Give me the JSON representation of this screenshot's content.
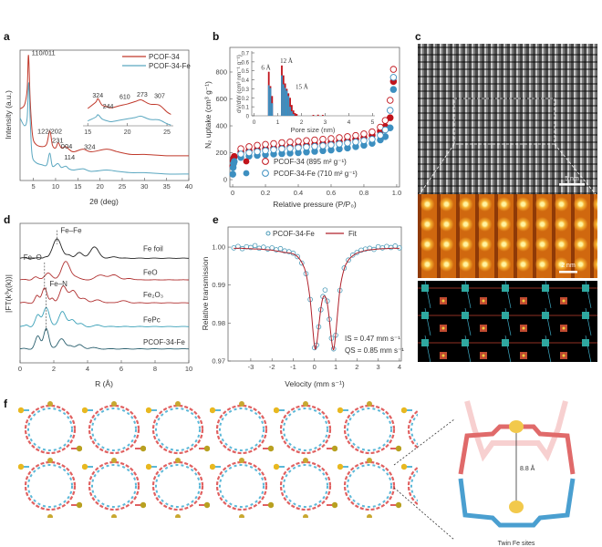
{
  "panel_labels": {
    "a": "a",
    "b": "b",
    "c": "c",
    "d": "d",
    "e": "e",
    "f": "f"
  },
  "chart_data": [
    {
      "panel": "a",
      "type": "line",
      "xlabel": "2θ (deg)",
      "ylabel": "Intensity (a.u.)",
      "xlim": [
        2,
        40
      ],
      "xticks": [
        "5",
        "10",
        "15",
        "20",
        "25",
        "30",
        "35",
        "40"
      ],
      "y_ticks_shown": false,
      "legend_position": "top-right",
      "series": [
        {
          "name": "PCOF-34",
          "color": "#c0392b",
          "x": [
            2,
            3,
            3.6,
            3.9,
            4.3,
            4.8,
            5.5,
            7,
            8,
            8.7,
            9.3,
            10,
            10.6,
            11.3,
            12.3,
            13,
            14,
            16.2,
            18,
            21.5,
            24,
            27,
            30,
            35,
            40
          ],
          "y": [
            55,
            58,
            70,
            96,
            60,
            35,
            28,
            26,
            28,
            38,
            27,
            25,
            29,
            25,
            26,
            24,
            22,
            24,
            22,
            24,
            22,
            20,
            20,
            19,
            19
          ]
        },
        {
          "name": "PCOF-34-Fe",
          "color": "#5aa7c0",
          "x": [
            2,
            3,
            3.6,
            3.95,
            4.3,
            4.7,
            5.5,
            7,
            8,
            8.7,
            9.3,
            10.5,
            11.3,
            12.3,
            13,
            14,
            16.2,
            18,
            21.5,
            24,
            27,
            30,
            35,
            40
          ],
          "y": [
            48,
            42,
            48,
            75,
            45,
            20,
            14,
            12,
            12,
            21,
            11,
            13,
            10,
            11,
            9,
            8,
            9,
            7,
            8,
            7,
            6,
            6,
            5,
            5
          ]
        }
      ],
      "annotations": [
        {
          "text": "110/011",
          "x": 4.6,
          "y": 96
        },
        {
          "text": "122/202",
          "x": 5.9,
          "y": 36
        },
        {
          "text": "231",
          "x": 9.2,
          "y": 29
        },
        {
          "text": "004",
          "x": 11.2,
          "y": 24.5
        },
        {
          "text": "324",
          "x": 16.4,
          "y": 24
        },
        {
          "text": "114",
          "x": 11.9,
          "y": 16
        }
      ],
      "inset": {
        "xlim": [
          14.4,
          25.8
        ],
        "xticks": [
          "15",
          "20",
          "25"
        ],
        "series": [
          {
            "name": "PCOF-34",
            "x": [
              15,
              16,
              16.3,
              16.8,
              17.5,
              18,
              19,
              20,
              21,
              21.7,
              22.5,
              23,
              24,
              25,
              25.5
            ],
            "y": [
              50,
              68,
              78,
              60,
              55,
              52,
              58,
              63,
              70,
              75,
              66,
              62,
              60,
              40,
              33
            ]
          },
          {
            "name": "PCOF-34-Fe",
            "x": [
              15,
              16,
              16.3,
              16.8,
              17.5,
              18,
              19,
              20,
              21,
              21.7,
              22.5,
              23,
              24,
              25,
              25.5
            ],
            "y": [
              14,
              25,
              32,
              20,
              14,
              12,
              16,
              20,
              24,
              28,
              21,
              18,
              17,
              6,
              2
            ]
          }
        ],
        "annotations": [
          {
            "text": "324",
            "x": 15.6,
            "y": 82
          },
          {
            "text": "610",
            "x": 19.0,
            "y": 78
          },
          {
            "text": "273",
            "x": 21.2,
            "y": 84
          },
          {
            "text": "307",
            "x": 23.4,
            "y": 80
          },
          {
            "text": "244",
            "x": 16.9,
            "y": 50
          }
        ]
      }
    },
    {
      "panel": "b",
      "type": "scatter",
      "xlabel": "Relative pressure (P/P₀)",
      "ylabel": "N₂ uptake (cm³ g⁻¹)",
      "xlim": [
        -0.017,
        1.017
      ],
      "ylim": [
        -54,
        983
      ],
      "xticks": [
        "0",
        "0.2",
        "0.4",
        "0.6",
        "0.8",
        "1.0"
      ],
      "yticks": [
        "0",
        "200",
        "400",
        "600",
        "800"
      ],
      "legend_position": "bottom-right",
      "legend": [
        "PCOF-34 (895 m² g⁻¹)",
        "PCOF-34-Fe (710 m² g⁻¹)"
      ],
      "series": [
        {
          "name": "PCOF-34 adsorption",
          "color": "#c0141c",
          "filled": true,
          "x": [
            0.001,
            0.003,
            0.006,
            0.01,
            0.05,
            0.1,
            0.15,
            0.2,
            0.25,
            0.3,
            0.35,
            0.4,
            0.45,
            0.5,
            0.55,
            0.6,
            0.65,
            0.7,
            0.75,
            0.8,
            0.85,
            0.9,
            0.93,
            0.96,
            0.98
          ],
          "y": [
            100,
            140,
            160,
            172,
            205,
            215,
            222,
            228,
            235,
            240,
            245,
            250,
            256,
            262,
            268,
            275,
            282,
            290,
            300,
            312,
            330,
            360,
            395,
            460,
            730
          ]
        },
        {
          "name": "PCOF-34 desorption",
          "color": "#c0141c",
          "filled": false,
          "x": [
            0.98,
            0.96,
            0.93,
            0.9,
            0.85,
            0.8,
            0.75,
            0.7,
            0.65,
            0.6,
            0.55,
            0.5,
            0.45,
            0.4,
            0.35,
            0.3,
            0.25,
            0.2,
            0.15,
            0.1,
            0.05
          ],
          "y": [
            820,
            590,
            440,
            390,
            355,
            340,
            328,
            320,
            312,
            305,
            300,
            295,
            290,
            285,
            280,
            275,
            268,
            262,
            255,
            245,
            230
          ]
        },
        {
          "name": "PCOF-34-Fe adsorption",
          "color": "#3d8fc0",
          "filled": true,
          "x": [
            0.001,
            0.003,
            0.006,
            0.01,
            0.05,
            0.1,
            0.15,
            0.2,
            0.25,
            0.3,
            0.35,
            0.4,
            0.45,
            0.5,
            0.55,
            0.6,
            0.65,
            0.7,
            0.75,
            0.8,
            0.85,
            0.9,
            0.93,
            0.96,
            0.98
          ],
          "y": [
            40,
            90,
            120,
            135,
            165,
            175,
            180,
            185,
            190,
            193,
            197,
            200,
            205,
            210,
            215,
            220,
            228,
            235,
            245,
            255,
            270,
            295,
            320,
            385,
            670
          ]
        },
        {
          "name": "PCOF-34-Fe desorption",
          "color": "#3d8fc0",
          "filled": false,
          "x": [
            0.98,
            0.96,
            0.93,
            0.9,
            0.85,
            0.8,
            0.75,
            0.7,
            0.65,
            0.6,
            0.55,
            0.5,
            0.45,
            0.4,
            0.35,
            0.3,
            0.25,
            0.2,
            0.15,
            0.1,
            0.05
          ],
          "y": [
            760,
            515,
            370,
            330,
            300,
            290,
            280,
            272,
            265,
            258,
            252,
            247,
            242,
            237,
            232,
            228,
            222,
            215,
            208,
            200,
            190
          ]
        }
      ],
      "inset": {
        "type": "bar",
        "xlabel": "Pore size (nm)",
        "ylabel": "dV/dW (cm³ nm⁻¹ g⁻¹)",
        "xlim": [
          -0.1,
          5.1
        ],
        "ylim": [
          0,
          0.7
        ],
        "xticks": [
          "0",
          "1",
          "2",
          "3",
          "4",
          "5"
        ],
        "yticks": [
          "0",
          "0.1",
          "0.2",
          "0.3",
          "0.4",
          "0.5",
          "0.6",
          "0.7"
        ],
        "series": [
          {
            "name": "PCOF-34",
            "color": "#c0141c",
            "x": [
              0.62,
              0.69,
              0.76,
              1.17,
              1.24,
              1.31,
              1.38,
              1.45,
              1.52,
              1.59,
              1.66,
              1.73,
              1.8,
              2.5,
              2.7,
              2.9
            ],
            "y": [
              0.49,
              0.33,
              0.22,
              0.56,
              0.45,
              0.36,
              0.3,
              0.25,
              0.2,
              0.12,
              0.06,
              0.03,
              0.02,
              0.01,
              0.012,
              0.01
            ]
          },
          {
            "name": "PCOF-34-Fe",
            "color": "#3d8fc0",
            "x": [
              0.62,
              0.69,
              0.76,
              1.17,
              1.24,
              1.31,
              1.38,
              1.45,
              1.52,
              1.59,
              1.66
            ],
            "y": [
              0.34,
              0.31,
              0.14,
              0.45,
              0.35,
              0.31,
              0.28,
              0.22,
              0.1,
              0.05,
              0.02
            ]
          }
        ],
        "annotations": [
          {
            "text": "6 Å",
            "x": 0.3,
            "y": 0.51
          },
          {
            "text": "12 Å",
            "x": 1.1,
            "y": 0.59
          },
          {
            "text": "15 Å",
            "x": 1.75,
            "y": 0.3
          }
        ]
      }
    },
    {
      "panel": "d",
      "type": "line",
      "xlabel": "R (Å)",
      "ylabel": "|FT(k³χ(k))|",
      "xlim": [
        0,
        10
      ],
      "ylim": [
        0,
        100
      ],
      "xticks": [
        "0",
        "2",
        "4",
        "6",
        "8",
        "10"
      ],
      "y_ticks_shown": false,
      "series": [
        {
          "name": "Fe foil",
          "color": "#222222",
          "offset": 75,
          "peaks": [
            [
              1.5,
              1,
              0.1
            ],
            [
              2.2,
              14,
              0.25
            ],
            [
              2.9,
              2,
              0.15
            ],
            [
              3.5,
              4,
              0.2
            ],
            [
              4.4,
              8,
              0.25
            ],
            [
              5.6,
              1,
              0.2
            ]
          ]
        },
        {
          "name": "FeO",
          "color": "#b03030",
          "offset": 59.5,
          "peaks": [
            [
              0.9,
              2,
              0.15
            ],
            [
              1.65,
              5,
              0.2
            ],
            [
              2.7,
              13,
              0.25
            ],
            [
              3.3,
              2,
              0.2
            ],
            [
              4.8,
              3.5,
              0.3
            ],
            [
              5.6,
              3.5,
              0.25
            ],
            [
              6.5,
              1,
              0.2
            ]
          ]
        },
        {
          "name": "Fe₂O₃",
          "color": "#b03030",
          "offset": 43,
          "peaks": [
            [
              1.0,
              5,
              0.12
            ],
            [
              1.45,
              11,
              0.15
            ],
            [
              1.9,
              3,
              0.1
            ],
            [
              2.55,
              12,
              0.2
            ],
            [
              3.15,
              9,
              0.22
            ],
            [
              3.8,
              3,
              0.2
            ],
            [
              4.6,
              2,
              0.25
            ],
            [
              6.1,
              1.5,
              0.25
            ]
          ]
        },
        {
          "name": "FePc",
          "color": "#3aa0b8",
          "offset": 26,
          "peaks": [
            [
              0.4,
              1,
              0.1
            ],
            [
              1.05,
              8,
              0.15
            ],
            [
              1.55,
              14,
              0.18
            ],
            [
              2.5,
              11,
              0.2
            ],
            [
              3.1,
              5,
              0.18
            ],
            [
              3.6,
              2,
              0.15
            ],
            [
              4.6,
              1,
              0.2
            ]
          ]
        },
        {
          "name": "PCOF-34-Fe",
          "color": "#2a5f6e",
          "offset": 10,
          "peaks": [
            [
              1.05,
              9,
              0.15
            ],
            [
              1.55,
              15,
              0.15
            ],
            [
              2.45,
              7.5,
              0.2
            ],
            [
              3.0,
              2,
              0.15
            ],
            [
              3.5,
              3,
              0.2
            ],
            [
              4.3,
              1,
              0.2
            ]
          ]
        }
      ],
      "series_labels": [
        {
          "text": "Fe foil",
          "x": 7.3,
          "y": 80
        },
        {
          "text": "FeO",
          "x": 7.3,
          "y": 63
        },
        {
          "text": "Fe₂O₃",
          "x": 7.3,
          "y": 47
        },
        {
          "text": "FePc",
          "x": 7.3,
          "y": 29
        },
        {
          "text": "PCOF-34-Fe",
          "x": 7.3,
          "y": 13
        }
      ],
      "annotations": [
        {
          "text": "Fe–Fe",
          "x": 2.4,
          "y": 93
        },
        {
          "text": "Fe–O",
          "x": 0.2,
          "y": 74
        },
        {
          "text": "Fe–N",
          "x": 1.75,
          "y": 55
        }
      ],
      "guide_lines": [
        {
          "x": 2.2,
          "y0": 95,
          "y1": 85
        },
        {
          "x": 1.45,
          "y0": 72,
          "y1": 52
        },
        {
          "x": 1.55,
          "y0": 54,
          "y1": 22
        }
      ]
    },
    {
      "panel": "e",
      "type": "scatter",
      "xlabel": "Velocity (mm s⁻¹)",
      "ylabel": "Relative transmission",
      "xlim": [
        -4.07,
        4.09
      ],
      "ylim": [
        0.97,
        1.0053
      ],
      "xticks": [
        "-3",
        "-2",
        "-1",
        "0",
        "1",
        "2",
        "3",
        "4"
      ],
      "yticks": [
        "0.97",
        "0.98",
        "0.99",
        "1.00"
      ],
      "legend_position": "top",
      "legend": [
        "PCOF-34-Fe",
        "Fit"
      ],
      "colors": {
        "data": "#4a9ab8",
        "fit": "#b0202a"
      },
      "annotations": [
        "IS = 0.47 mm s⁻¹",
        "QS = 0.85 mm s⁻¹"
      ],
      "x": [
        -3.8,
        -3.6,
        -3.4,
        -3.2,
        -3.0,
        -2.8,
        -2.6,
        -2.4,
        -2.2,
        -2.0,
        -1.8,
        -1.6,
        -1.4,
        -1.2,
        -1.0,
        -0.8,
        -0.6,
        -0.4,
        -0.2,
        0.0,
        0.1,
        0.2,
        0.3,
        0.4,
        0.5,
        0.6,
        0.7,
        0.8,
        0.9,
        1.0,
        1.2,
        1.4,
        1.6,
        1.8,
        2.0,
        2.2,
        2.4,
        2.6,
        2.8,
        3.0,
        3.2,
        3.4,
        3.6,
        3.8,
        4.0
      ],
      "data_y": [
        0.9998,
        1.0002,
        0.9996,
        1.0001,
        0.9999,
        1.0004,
        0.9997,
        1.0,
        0.9995,
        0.9998,
        0.9993,
        0.9996,
        0.999,
        0.9988,
        0.9984,
        0.9975,
        0.9958,
        0.993,
        0.9862,
        0.9735,
        0.9742,
        0.979,
        0.9835,
        0.987,
        0.9887,
        0.9858,
        0.981,
        0.976,
        0.9732,
        0.9768,
        0.9886,
        0.9945,
        0.9966,
        0.9979,
        0.9986,
        0.9992,
        0.9995,
        0.9997,
        0.9994,
        1.0001,
        0.9998,
        1.0002,
        0.9999,
        1.0003,
        0.9998
      ],
      "fit_y": [
        0.9997,
        0.9997,
        0.9997,
        0.9996,
        0.9996,
        0.9995,
        0.9995,
        0.9994,
        0.9993,
        0.9992,
        0.999,
        0.9988,
        0.9986,
        0.9985,
        0.9982,
        0.9975,
        0.996,
        0.9931,
        0.986,
        0.974,
        0.9745,
        0.979,
        0.9838,
        0.9867,
        0.987,
        0.9853,
        0.981,
        0.9757,
        0.973,
        0.9771,
        0.9889,
        0.9943,
        0.9966,
        0.9977,
        0.9984,
        0.9988,
        0.9991,
        0.9993,
        0.9994,
        0.9995,
        0.9996,
        0.9996,
        0.9997,
        0.9997,
        0.9997
      ]
    }
  ],
  "panel_c": {
    "scale_bar_tem": "5 nm",
    "scale_bar_stem": "2 nm"
  },
  "panel_f": {
    "distance_label": "8.8 Å",
    "caption": "Twin Fe sites"
  }
}
